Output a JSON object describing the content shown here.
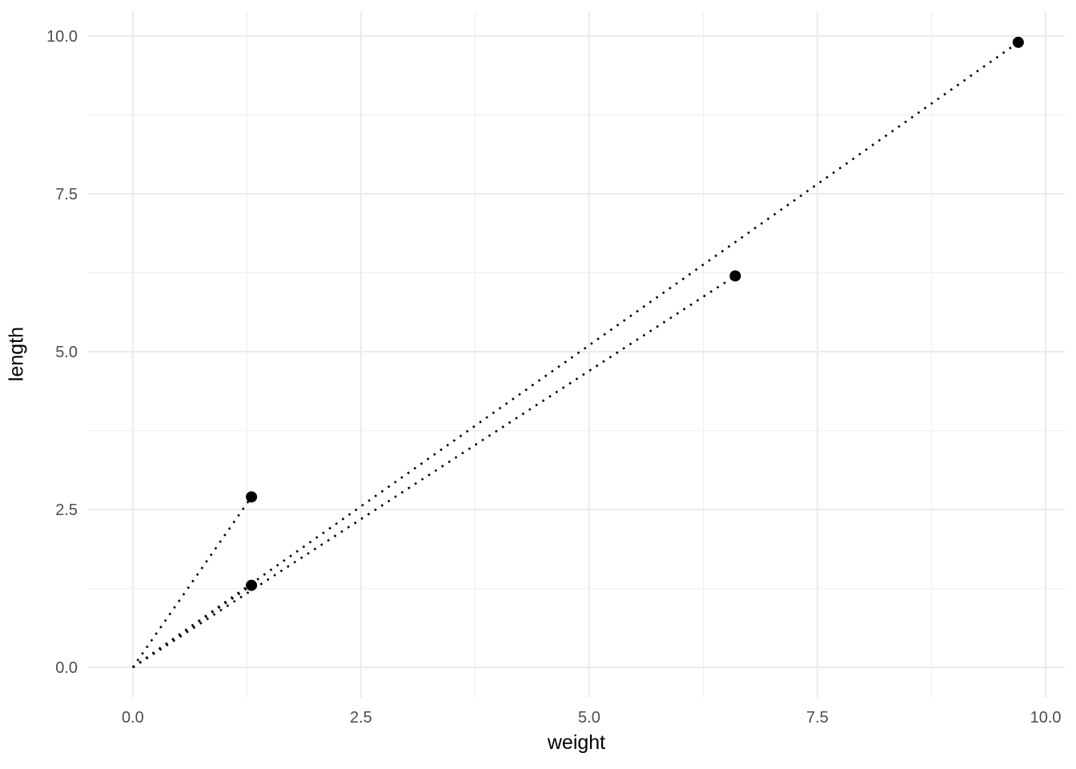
{
  "chart_data": {
    "type": "scatter",
    "title": "",
    "xlabel": "weight",
    "ylabel": "length",
    "x": [
      1.3,
      1.3,
      6.6,
      9.7
    ],
    "y": [
      2.7,
      1.3,
      6.2,
      9.9
    ],
    "segments": [
      {
        "from": [
          0,
          0
        ],
        "to": [
          1.3,
          2.7
        ],
        "style": "dotted"
      },
      {
        "from": [
          0,
          0
        ],
        "to": [
          1.3,
          1.3
        ],
        "style": "dotted"
      },
      {
        "from": [
          0,
          0
        ],
        "to": [
          6.6,
          6.2
        ],
        "style": "dotted"
      },
      {
        "from": [
          0,
          0
        ],
        "to": [
          9.7,
          9.9
        ],
        "style": "dotted"
      }
    ],
    "x_ticks": {
      "values": [
        0,
        2.5,
        5,
        7.5,
        10
      ],
      "labels": [
        "0.0",
        "2.5",
        "5.0",
        "7.5",
        "10.0"
      ]
    },
    "y_ticks": {
      "values": [
        0,
        2.5,
        5,
        7.5,
        10
      ],
      "labels": [
        "0.0",
        "2.5",
        "5.0",
        "7.5",
        "10.0"
      ]
    },
    "x_minor": [
      1.25,
      3.75,
      6.25,
      8.75
    ],
    "y_minor": [
      1.25,
      3.75,
      6.25,
      8.75
    ],
    "xlim": [
      -0.49,
      10.21
    ],
    "ylim": [
      -0.48,
      10.38
    ],
    "grid": "major+minor",
    "legend": "none",
    "colors": {
      "point": "#000000",
      "line": "#000000",
      "grid_major": "#EBEBEB",
      "grid_minor": "#F0F0F0",
      "tick_label": "#4D4D4D",
      "axis_title": "#000000",
      "background": "#FFFFFF"
    }
  }
}
